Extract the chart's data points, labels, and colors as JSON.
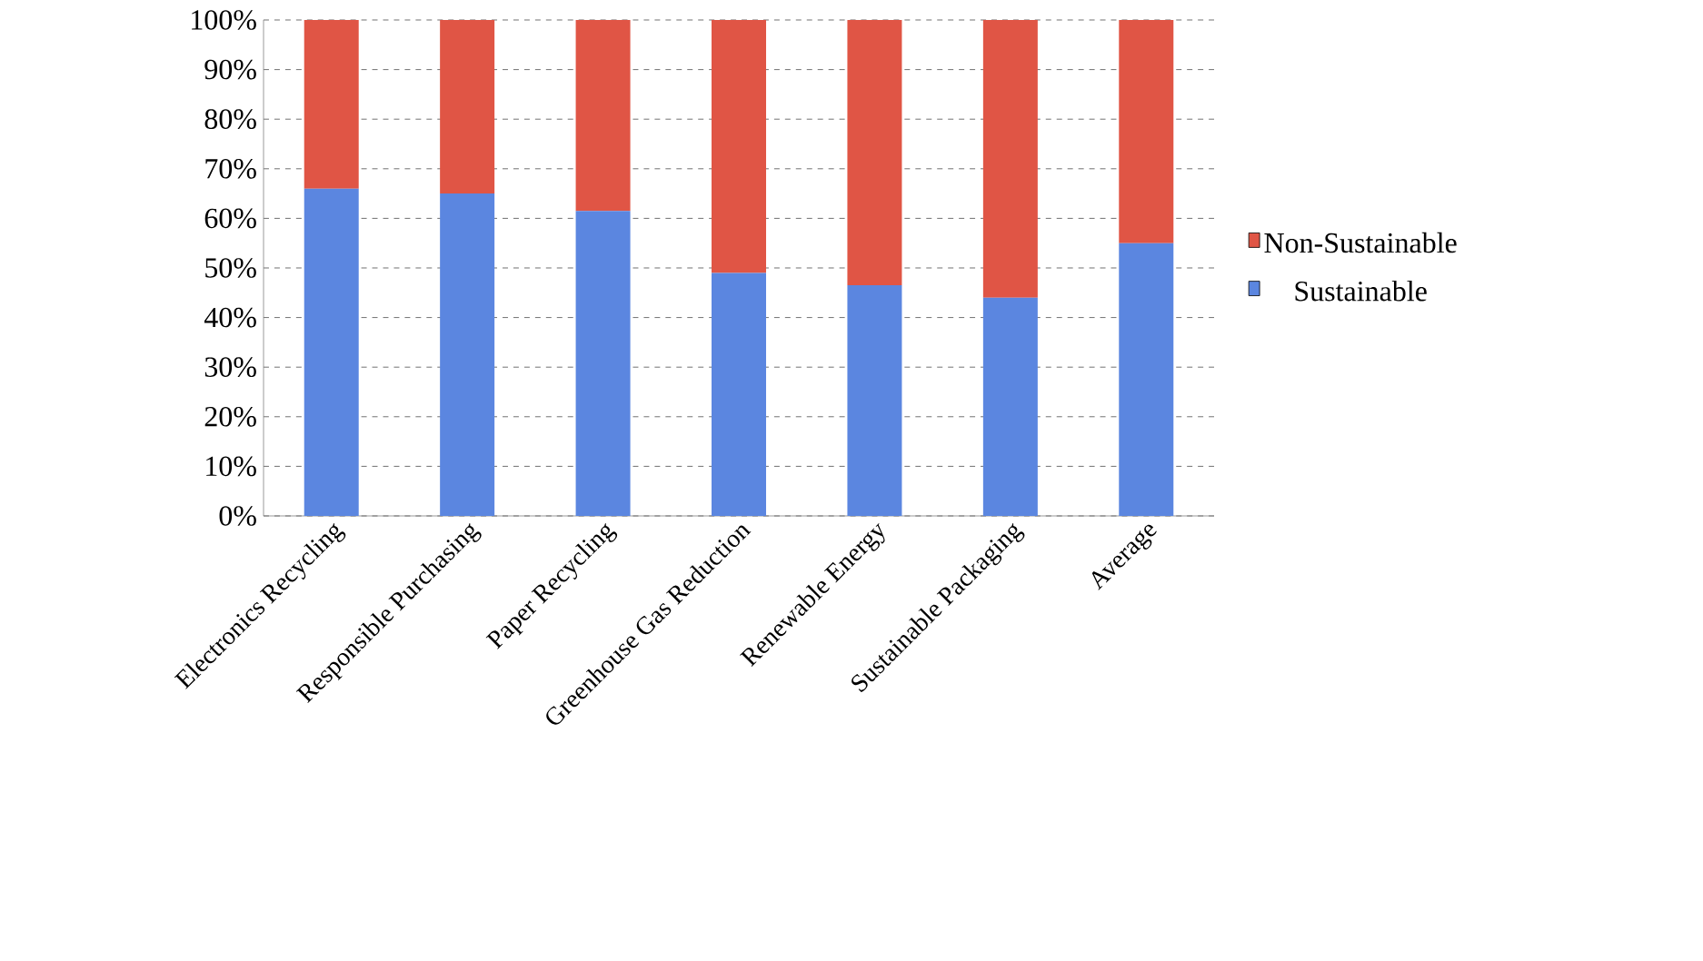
{
  "chart_data": {
    "type": "bar",
    "stacked": true,
    "categories": [
      "Electronics Recycling",
      "Responsible Purchasing",
      "Paper Recycling",
      "Greenhouse Gas Reduction",
      "Renewable Energy",
      "Sustainable Packaging",
      "Average"
    ],
    "series": [
      {
        "name": "Sustainable",
        "color": "#5b86e0",
        "values": [
          66,
          65,
          61.5,
          49,
          46.5,
          44,
          55
        ]
      },
      {
        "name": "Non-Sustainable",
        "color": "#e05545",
        "values": [
          34,
          35,
          38.5,
          51,
          53.5,
          56,
          45
        ]
      }
    ],
    "ylim": [
      0,
      100
    ],
    "yticks": [
      {
        "value": 0,
        "label": "0%"
      },
      {
        "value": 10,
        "label": "10%"
      },
      {
        "value": 20,
        "label": "20%"
      },
      {
        "value": 30,
        "label": "30%"
      },
      {
        "value": 40,
        "label": "40%"
      },
      {
        "value": 50,
        "label": "50%"
      },
      {
        "value": 60,
        "label": "60%"
      },
      {
        "value": 70,
        "label": "70%"
      },
      {
        "value": 80,
        "label": "80%"
      },
      {
        "value": 90,
        "label": "90%"
      },
      {
        "value": 100,
        "label": "100%"
      }
    ],
    "grid": "y",
    "legend": "right"
  }
}
